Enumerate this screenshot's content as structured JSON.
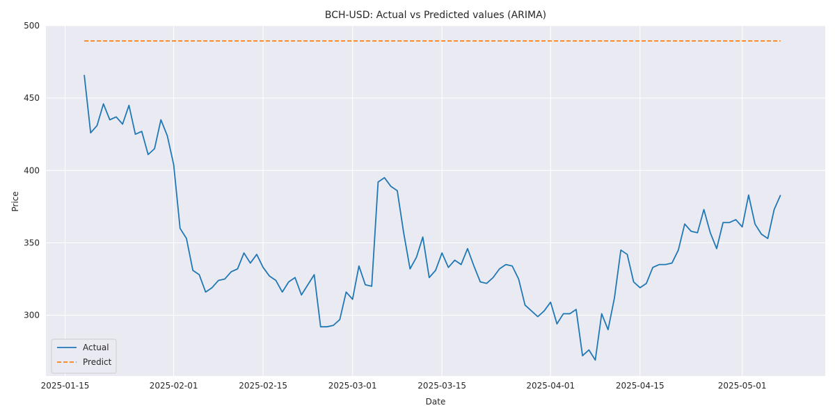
{
  "chart_data": {
    "type": "line",
    "title": "BCH-USD: Actual vs Predicted values (ARIMA)",
    "xlabel": "Date",
    "ylabel": "Price",
    "x_tick_labels": [
      "2025-01-15",
      "2025-02-01",
      "2025-02-15",
      "2025-03-01",
      "2025-03-15",
      "2025-04-01",
      "2025-04-15",
      "2025-05-01"
    ],
    "y_ticks": [
      300,
      350,
      400,
      450,
      500
    ],
    "xlim": [
      "2025-01-12",
      "2025-05-14"
    ],
    "ylim": [
      258,
      500
    ],
    "grid": true,
    "legend_position": "bottom-left",
    "background_color": "#eaeaf2",
    "series": [
      {
        "name": "Actual",
        "color": "#1f77b4",
        "style": "solid",
        "x_start": "2025-01-18",
        "values": [
          466,
          426,
          431,
          446,
          435,
          437,
          432,
          445,
          425,
          427,
          411,
          415,
          435,
          424,
          404,
          360,
          353,
          331,
          328,
          316,
          319,
          324,
          325,
          330,
          332,
          343,
          336,
          342,
          333,
          327,
          324,
          316,
          323,
          326,
          314,
          321,
          328,
          292,
          292,
          293,
          297,
          316,
          311,
          334,
          321,
          320,
          392,
          395,
          389,
          386,
          357,
          332,
          340,
          354,
          326,
          331,
          343,
          333,
          338,
          335,
          346,
          334,
          323,
          322,
          326,
          332,
          335,
          334,
          325,
          307,
          303,
          299,
          303,
          309,
          294,
          301,
          301,
          304,
          272,
          276,
          269,
          301,
          290,
          312,
          345,
          342,
          323,
          319,
          322,
          333,
          335,
          335,
          336,
          345,
          363,
          358,
          357,
          373,
          357,
          346,
          364,
          364,
          366,
          361,
          383,
          363,
          356,
          353,
          373,
          383
        ]
      },
      {
        "name": "Predict",
        "color": "#ff7f0e",
        "style": "dashed",
        "x_start": "2025-01-18",
        "x_end": "2025-05-07",
        "values": [
          489.5,
          489.5
        ]
      }
    ]
  }
}
